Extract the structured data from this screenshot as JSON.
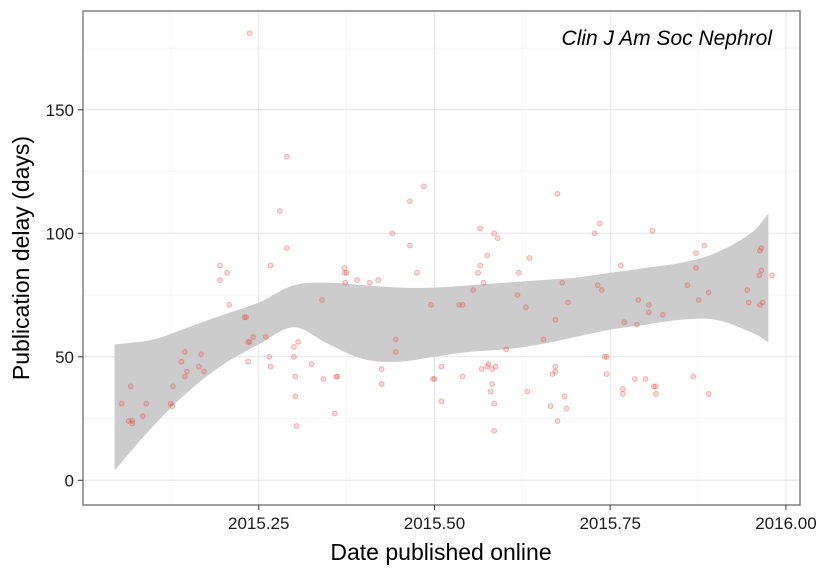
{
  "chart_data": {
    "type": "scatter",
    "title": "Clin J Am Soc Nephrol",
    "xlabel": "Date published online",
    "ylabel": "Publication delay (days)",
    "xlim": [
      2015.0,
      2016.02
    ],
    "ylim": [
      -10,
      190
    ],
    "x_ticks": [
      2015.25,
      2015.5,
      2015.75,
      2016.0
    ],
    "x_tick_labels": [
      "2015.25",
      "2015.50",
      "2015.75",
      "2016.00"
    ],
    "y_ticks": [
      0,
      50,
      100,
      150
    ],
    "y_tick_labels": [
      "0",
      "50",
      "100",
      "150"
    ],
    "grid": true,
    "point_color": "#e8433a",
    "band_color": "#cccccc",
    "smooth": {
      "x": [
        2015.045,
        2015.1,
        2015.15,
        2015.2,
        2015.25,
        2015.3,
        2015.35,
        2015.4,
        2015.45,
        2015.5,
        2015.55,
        2015.6,
        2015.65,
        2015.7,
        2015.75,
        2015.8,
        2015.85,
        2015.9,
        2015.95,
        2015.975
      ],
      "lower": [
        4,
        22,
        36,
        47,
        55,
        62,
        55,
        49,
        48,
        50,
        52,
        53,
        55,
        58,
        61,
        63,
        65,
        65,
        60,
        56
      ],
      "upper": [
        55,
        57,
        62,
        67,
        72,
        79,
        80,
        79,
        78,
        78,
        79,
        80,
        81,
        82,
        84,
        86,
        88,
        92,
        100,
        108
      ]
    },
    "points": [
      [
        2015.055,
        31
      ],
      [
        2015.065,
        24
      ],
      [
        2015.068,
        38
      ],
      [
        2015.07,
        23
      ],
      [
        2015.07,
        24
      ],
      [
        2015.085,
        26
      ],
      [
        2015.09,
        31
      ],
      [
        2015.125,
        31
      ],
      [
        2015.127,
        30
      ],
      [
        2015.128,
        38
      ],
      [
        2015.14,
        48
      ],
      [
        2015.145,
        52
      ],
      [
        2015.145,
        42
      ],
      [
        2015.148,
        44
      ],
      [
        2015.165,
        46
      ],
      [
        2015.168,
        51
      ],
      [
        2015.172,
        44
      ],
      [
        2015.195,
        87
      ],
      [
        2015.195,
        81
      ],
      [
        2015.205,
        84
      ],
      [
        2015.208,
        71
      ],
      [
        2015.23,
        66
      ],
      [
        2015.232,
        66
      ],
      [
        2015.235,
        48
      ],
      [
        2015.235,
        56
      ],
      [
        2015.237,
        56
      ],
      [
        2015.237,
        181
      ],
      [
        2015.242,
        58
      ],
      [
        2015.26,
        58
      ],
      [
        2015.265,
        50
      ],
      [
        2015.267,
        46
      ],
      [
        2015.267,
        87
      ],
      [
        2015.28,
        109
      ],
      [
        2015.29,
        94
      ],
      [
        2015.29,
        131
      ],
      [
        2015.3,
        50
      ],
      [
        2015.3,
        54
      ],
      [
        2015.302,
        42
      ],
      [
        2015.302,
        34
      ],
      [
        2015.304,
        22
      ],
      [
        2015.306,
        56
      ],
      [
        2015.325,
        47
      ],
      [
        2015.34,
        73
      ],
      [
        2015.342,
        41
      ],
      [
        2015.358,
        27
      ],
      [
        2015.36,
        42
      ],
      [
        2015.362,
        42
      ],
      [
        2015.372,
        86
      ],
      [
        2015.372,
        84
      ],
      [
        2015.373,
        80
      ],
      [
        2015.375,
        84
      ],
      [
        2015.39,
        81
      ],
      [
        2015.408,
        80
      ],
      [
        2015.42,
        81
      ],
      [
        2015.425,
        45
      ],
      [
        2015.425,
        39
      ],
      [
        2015.44,
        100
      ],
      [
        2015.445,
        57
      ],
      [
        2015.445,
        52
      ],
      [
        2015.465,
        95
      ],
      [
        2015.465,
        113
      ],
      [
        2015.475,
        84
      ],
      [
        2015.485,
        119
      ],
      [
        2015.495,
        71
      ],
      [
        2015.498,
        41
      ],
      [
        2015.5,
        41
      ],
      [
        2015.51,
        46
      ],
      [
        2015.51,
        32
      ],
      [
        2015.535,
        71
      ],
      [
        2015.54,
        71
      ],
      [
        2015.54,
        42
      ],
      [
        2015.555,
        77
      ],
      [
        2015.562,
        84
      ],
      [
        2015.565,
        87
      ],
      [
        2015.565,
        102
      ],
      [
        2015.567,
        45
      ],
      [
        2015.57,
        80
      ],
      [
        2015.575,
        46
      ],
      [
        2015.575,
        91
      ],
      [
        2015.577,
        47
      ],
      [
        2015.58,
        36
      ],
      [
        2015.582,
        45
      ],
      [
        2015.582,
        39
      ],
      [
        2015.585,
        100
      ],
      [
        2015.585,
        31
      ],
      [
        2015.585,
        20
      ],
      [
        2015.587,
        46
      ],
      [
        2015.59,
        98
      ],
      [
        2015.602,
        53
      ],
      [
        2015.618,
        75
      ],
      [
        2015.62,
        84
      ],
      [
        2015.63,
        70
      ],
      [
        2015.632,
        36
      ],
      [
        2015.635,
        90
      ],
      [
        2015.655,
        57
      ],
      [
        2015.665,
        30
      ],
      [
        2015.668,
        43
      ],
      [
        2015.672,
        44
      ],
      [
        2015.672,
        46
      ],
      [
        2015.672,
        65
      ],
      [
        2015.675,
        24
      ],
      [
        2015.675,
        116
      ],
      [
        2015.682,
        80
      ],
      [
        2015.685,
        34
      ],
      [
        2015.688,
        29
      ],
      [
        2015.69,
        72
      ],
      [
        2015.728,
        100
      ],
      [
        2015.732,
        79
      ],
      [
        2015.735,
        104
      ],
      [
        2015.738,
        77
      ],
      [
        2015.742,
        50
      ],
      [
        2015.745,
        50
      ],
      [
        2015.745,
        43
      ],
      [
        2015.765,
        87
      ],
      [
        2015.768,
        37
      ],
      [
        2015.768,
        35
      ],
      [
        2015.77,
        64
      ],
      [
        2015.785,
        41
      ],
      [
        2015.788,
        63
      ],
      [
        2015.79,
        73
      ],
      [
        2015.8,
        41
      ],
      [
        2015.805,
        68
      ],
      [
        2015.805,
        71
      ],
      [
        2015.81,
        101
      ],
      [
        2015.812,
        38
      ],
      [
        2015.815,
        38
      ],
      [
        2015.815,
        35
      ],
      [
        2015.825,
        67
      ],
      [
        2015.86,
        79
      ],
      [
        2015.868,
        42
      ],
      [
        2015.872,
        86
      ],
      [
        2015.872,
        92
      ],
      [
        2015.876,
        73
      ],
      [
        2015.884,
        95
      ],
      [
        2015.89,
        76
      ],
      [
        2015.89,
        35
      ],
      [
        2015.945,
        77
      ],
      [
        2015.947,
        72
      ],
      [
        2015.962,
        83
      ],
      [
        2015.963,
        93
      ],
      [
        2015.963,
        71
      ],
      [
        2015.965,
        94
      ],
      [
        2015.965,
        85
      ],
      [
        2015.967,
        72
      ],
      [
        2015.98,
        83
      ]
    ]
  }
}
